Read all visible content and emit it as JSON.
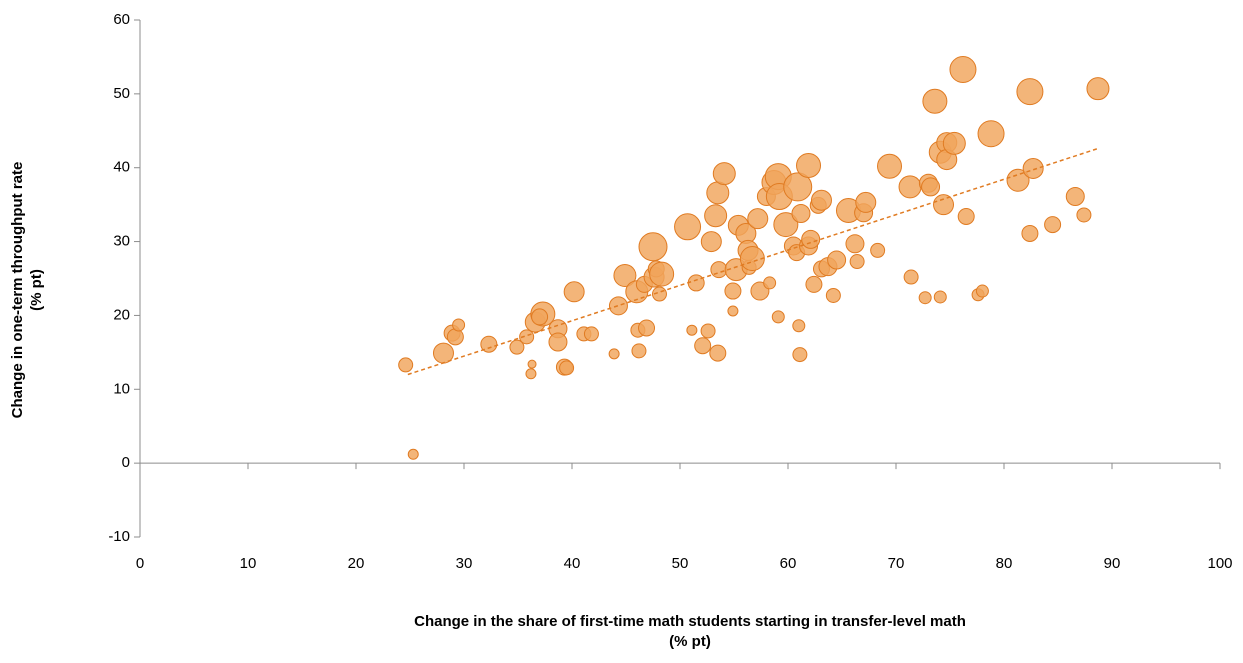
{
  "chart_data": {
    "type": "scatter",
    "xlabel": [
      "Change in the share of first-time math students starting in transfer-level math",
      "(% pt)"
    ],
    "ylabel": [
      "Change in one-term throughput rate",
      "(% pt)"
    ],
    "color": "#f0a55c",
    "edge_color": "#e07b22",
    "trend_color": "#e07b22",
    "xlim": [
      0,
      100
    ],
    "xticks": [
      0,
      10,
      20,
      30,
      40,
      50,
      60,
      70,
      80,
      90,
      100
    ],
    "ylim": [
      -10,
      60
    ],
    "yticks": [
      -10,
      0,
      10,
      20,
      30,
      40,
      50,
      60
    ],
    "trendline": {
      "x": [
        24.8,
        88.7
      ],
      "y": [
        12,
        42.6
      ]
    },
    "x": [
      24.6,
      25.3,
      28.1,
      28.9,
      29.2,
      29.5,
      32.3,
      34.9,
      35.8,
      36.2,
      36.3,
      36.6,
      37.3,
      37.0,
      38.7,
      38.7,
      39.3,
      39.5,
      40.2,
      41.1,
      41.8,
      43.9,
      44.3,
      44.9,
      46.0,
      46.1,
      46.2,
      46.7,
      46.9,
      47.5,
      47.6,
      47.8,
      48.1,
      48.3,
      51.1,
      50.7,
      51.5,
      52.1,
      52.6,
      52.9,
      53.3,
      53.5,
      53.5,
      53.6,
      54.1,
      54.9,
      54.9,
      55.2,
      55.4,
      56.1,
      56.3,
      56.4,
      56.7,
      57.2,
      57.4,
      58.0,
      58.3,
      58.7,
      59.1,
      59.2,
      59.1,
      59.8,
      60.5,
      60.9,
      60.8,
      61.0,
      61.1,
      61.2,
      61.9,
      61.9,
      62.1,
      62.4,
      62.8,
      63.1,
      63.1,
      63.7,
      64.2,
      64.5,
      65.6,
      66.2,
      66.4,
      67.0,
      67.2,
      68.3,
      69.4,
      71.3,
      71.4,
      72.7,
      73.0,
      73.2,
      73.6,
      74.1,
      74.1,
      74.4,
      74.7,
      74.7,
      75.4,
      76.2,
      76.5,
      77.6,
      78.0,
      78.8,
      81.3,
      82.4,
      82.4,
      82.7,
      84.5,
      86.6,
      87.4,
      88.7
    ],
    "y": [
      13.3,
      1.2,
      14.9,
      17.6,
      17.1,
      18.7,
      16.1,
      15.7,
      17.1,
      12.1,
      13.4,
      19.1,
      20.2,
      19.8,
      18.2,
      16.4,
      13.0,
      12.9,
      23.2,
      17.5,
      17.5,
      14.8,
      21.3,
      25.4,
      23.2,
      18.0,
      15.2,
      24.2,
      18.3,
      29.3,
      25.2,
      26.3,
      22.9,
      25.6,
      18.0,
      32.0,
      24.4,
      15.9,
      17.9,
      30.0,
      33.5,
      36.6,
      14.9,
      26.2,
      39.2,
      23.3,
      20.6,
      26.2,
      32.2,
      31.1,
      28.8,
      26.5,
      27.7,
      33.1,
      23.3,
      36.1,
      24.4,
      38.0,
      38.8,
      36.1,
      19.8,
      32.3,
      29.4,
      37.4,
      28.5,
      18.6,
      14.7,
      33.8,
      29.4,
      40.3,
      30.3,
      24.2,
      34.9,
      35.6,
      26.3,
      26.6,
      22.7,
      27.5,
      34.2,
      29.7,
      27.3,
      33.9,
      35.3,
      28.8,
      40.2,
      37.4,
      25.2,
      22.4,
      37.9,
      37.4,
      49.0,
      42.1,
      22.5,
      35.0,
      43.4,
      41.1,
      43.3,
      53.3,
      33.4,
      22.8,
      23.3,
      44.6,
      38.3,
      50.3,
      31.1,
      39.9,
      32.3,
      36.1,
      33.6,
      50.7
    ],
    "sizes": [
      7,
      5,
      10,
      8,
      8,
      6,
      8,
      7,
      7,
      5,
      4,
      10,
      12,
      8,
      9,
      9,
      8,
      7,
      10,
      7,
      7,
      5,
      9,
      11,
      11,
      7,
      7,
      8,
      8,
      14,
      10,
      8,
      7,
      12,
      5,
      13,
      8,
      8,
      7,
      10,
      11,
      11,
      8,
      8,
      11,
      8,
      5,
      11,
      10,
      10,
      10,
      7,
      12,
      10,
      9,
      9,
      6,
      12,
      13,
      13,
      6,
      12,
      9,
      14,
      8,
      6,
      7,
      9,
      9,
      12,
      9,
      8,
      8,
      10,
      8,
      9,
      7,
      9,
      12,
      9,
      7,
      9,
      10,
      7,
      12,
      11,
      7,
      6,
      9,
      9,
      12,
      11,
      6,
      10,
      10,
      10,
      11,
      13,
      8,
      6,
      6,
      13,
      11,
      13,
      8,
      10,
      8,
      9,
      7,
      11
    ]
  }
}
